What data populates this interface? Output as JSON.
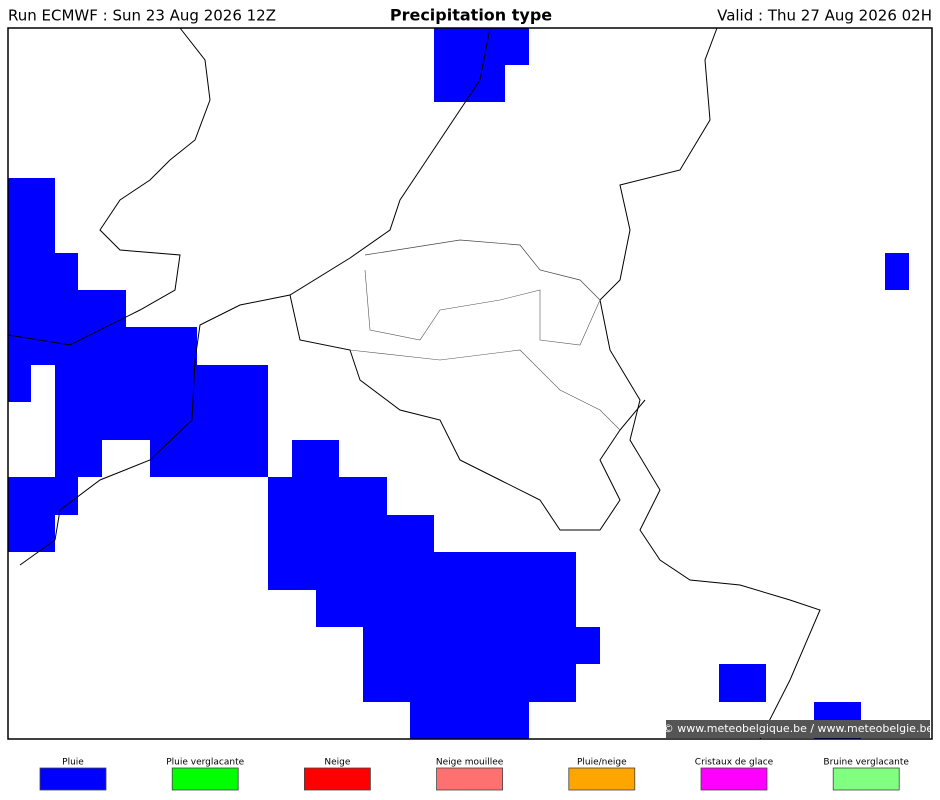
{
  "header": {
    "run": "Run ECMWF : Sun 23 Aug 2026 12Z",
    "title": "Precipitation type",
    "valid": "Valid : Thu 27 Aug 2026 02H"
  },
  "watermark": "© www.meteobelgique.be / www.meteobelgie.be",
  "legend": {
    "items": [
      {
        "label": "Pluie",
        "color": "#0000ff"
      },
      {
        "label": "Pluie verglacante",
        "color": "#00ff00"
      },
      {
        "label": "Neige",
        "color": "#ff0000"
      },
      {
        "label": "Neige mouillee",
        "color": "#ff7070"
      },
      {
        "label": "Pluie/neige",
        "color": "#ffa500"
      },
      {
        "label": "Cristaux de glace",
        "color": "#ff00ff"
      },
      {
        "label": "Bruine verglacante",
        "color": "#80ff80"
      }
    ]
  }
}
